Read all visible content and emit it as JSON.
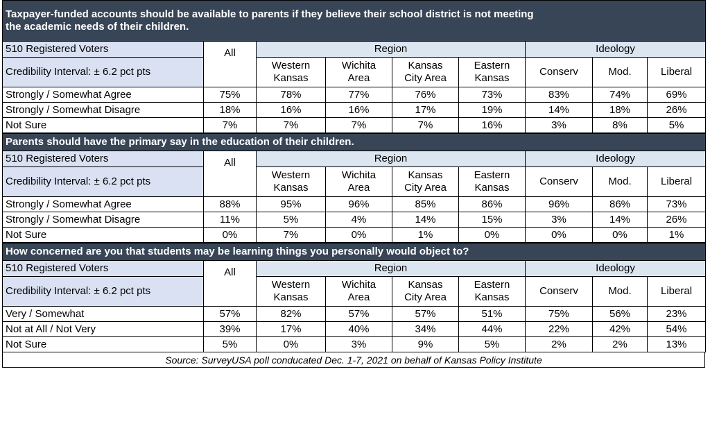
{
  "columns": {
    "voters": "510 Registered Voters",
    "ci": "Credibility Interval: ± 6.2 pct pts",
    "all": "All",
    "region": "Region",
    "ideology": "Ideology",
    "wk1": "Western",
    "wk2": "Kansas",
    "wa1": "Wichita",
    "wa2": "Area",
    "kc1": "Kansas",
    "kc2": "City Area",
    "ek1": "Eastern",
    "ek2": "Kansas",
    "conserv": "Conserv",
    "mod": "Mod.",
    "liberal": "Liberal"
  },
  "sections": [
    {
      "question_line1": "Taxpayer-funded accounts should be available to parents if they believe their school district is not meeting",
      "question_line2": "the academic needs of their children.",
      "rows": [
        {
          "label": "Strongly / Somewhat Agree",
          "values": [
            "75%",
            "78%",
            "77%",
            "76%",
            "73%",
            "83%",
            "74%",
            "69%"
          ]
        },
        {
          "label": "Strongly / Somewhat Disagre",
          "values": [
            "18%",
            "16%",
            "16%",
            "17%",
            "19%",
            "14%",
            "18%",
            "26%"
          ]
        },
        {
          "label": "Not Sure",
          "values": [
            "7%",
            "7%",
            "7%",
            "7%",
            "16%",
            "3%",
            "8%",
            "5%"
          ]
        }
      ]
    },
    {
      "question_line1": "Parents should have the primary say in the education of their children.",
      "question_line2": "",
      "rows": [
        {
          "label": "Strongly / Somewhat Agree",
          "values": [
            "88%",
            "95%",
            "96%",
            "85%",
            "86%",
            "96%",
            "86%",
            "73%"
          ]
        },
        {
          "label": "Strongly / Somewhat Disagre",
          "values": [
            "11%",
            "5%",
            "4%",
            "14%",
            "15%",
            "3%",
            "14%",
            "26%"
          ]
        },
        {
          "label": "Not Sure",
          "values": [
            "0%",
            "7%",
            "0%",
            "1%",
            "0%",
            "0%",
            "0%",
            "1%"
          ]
        }
      ]
    },
    {
      "question_line1": "How concerned are you that students may be learning things you personally would object to?",
      "question_line2": "",
      "rows": [
        {
          "label": "Very / Somewhat",
          "values": [
            "57%",
            "82%",
            "57%",
            "57%",
            "51%",
            "75%",
            "56%",
            "23%"
          ]
        },
        {
          "label": "Not at All / Not Very",
          "values": [
            "39%",
            "17%",
            "40%",
            "34%",
            "44%",
            "22%",
            "42%",
            "54%"
          ]
        },
        {
          "label": "Not Sure",
          "values": [
            "5%",
            "0%",
            "3%",
            "9%",
            "5%",
            "2%",
            "2%",
            "13%"
          ]
        }
      ]
    }
  ],
  "source": "Source: SurveyUSA poll conducated Dec. 1-7, 2021 on behalf of Kansas Policy Institute",
  "colors": {
    "header_bg": "#374556",
    "meta_bg": "#d9e1f2"
  }
}
